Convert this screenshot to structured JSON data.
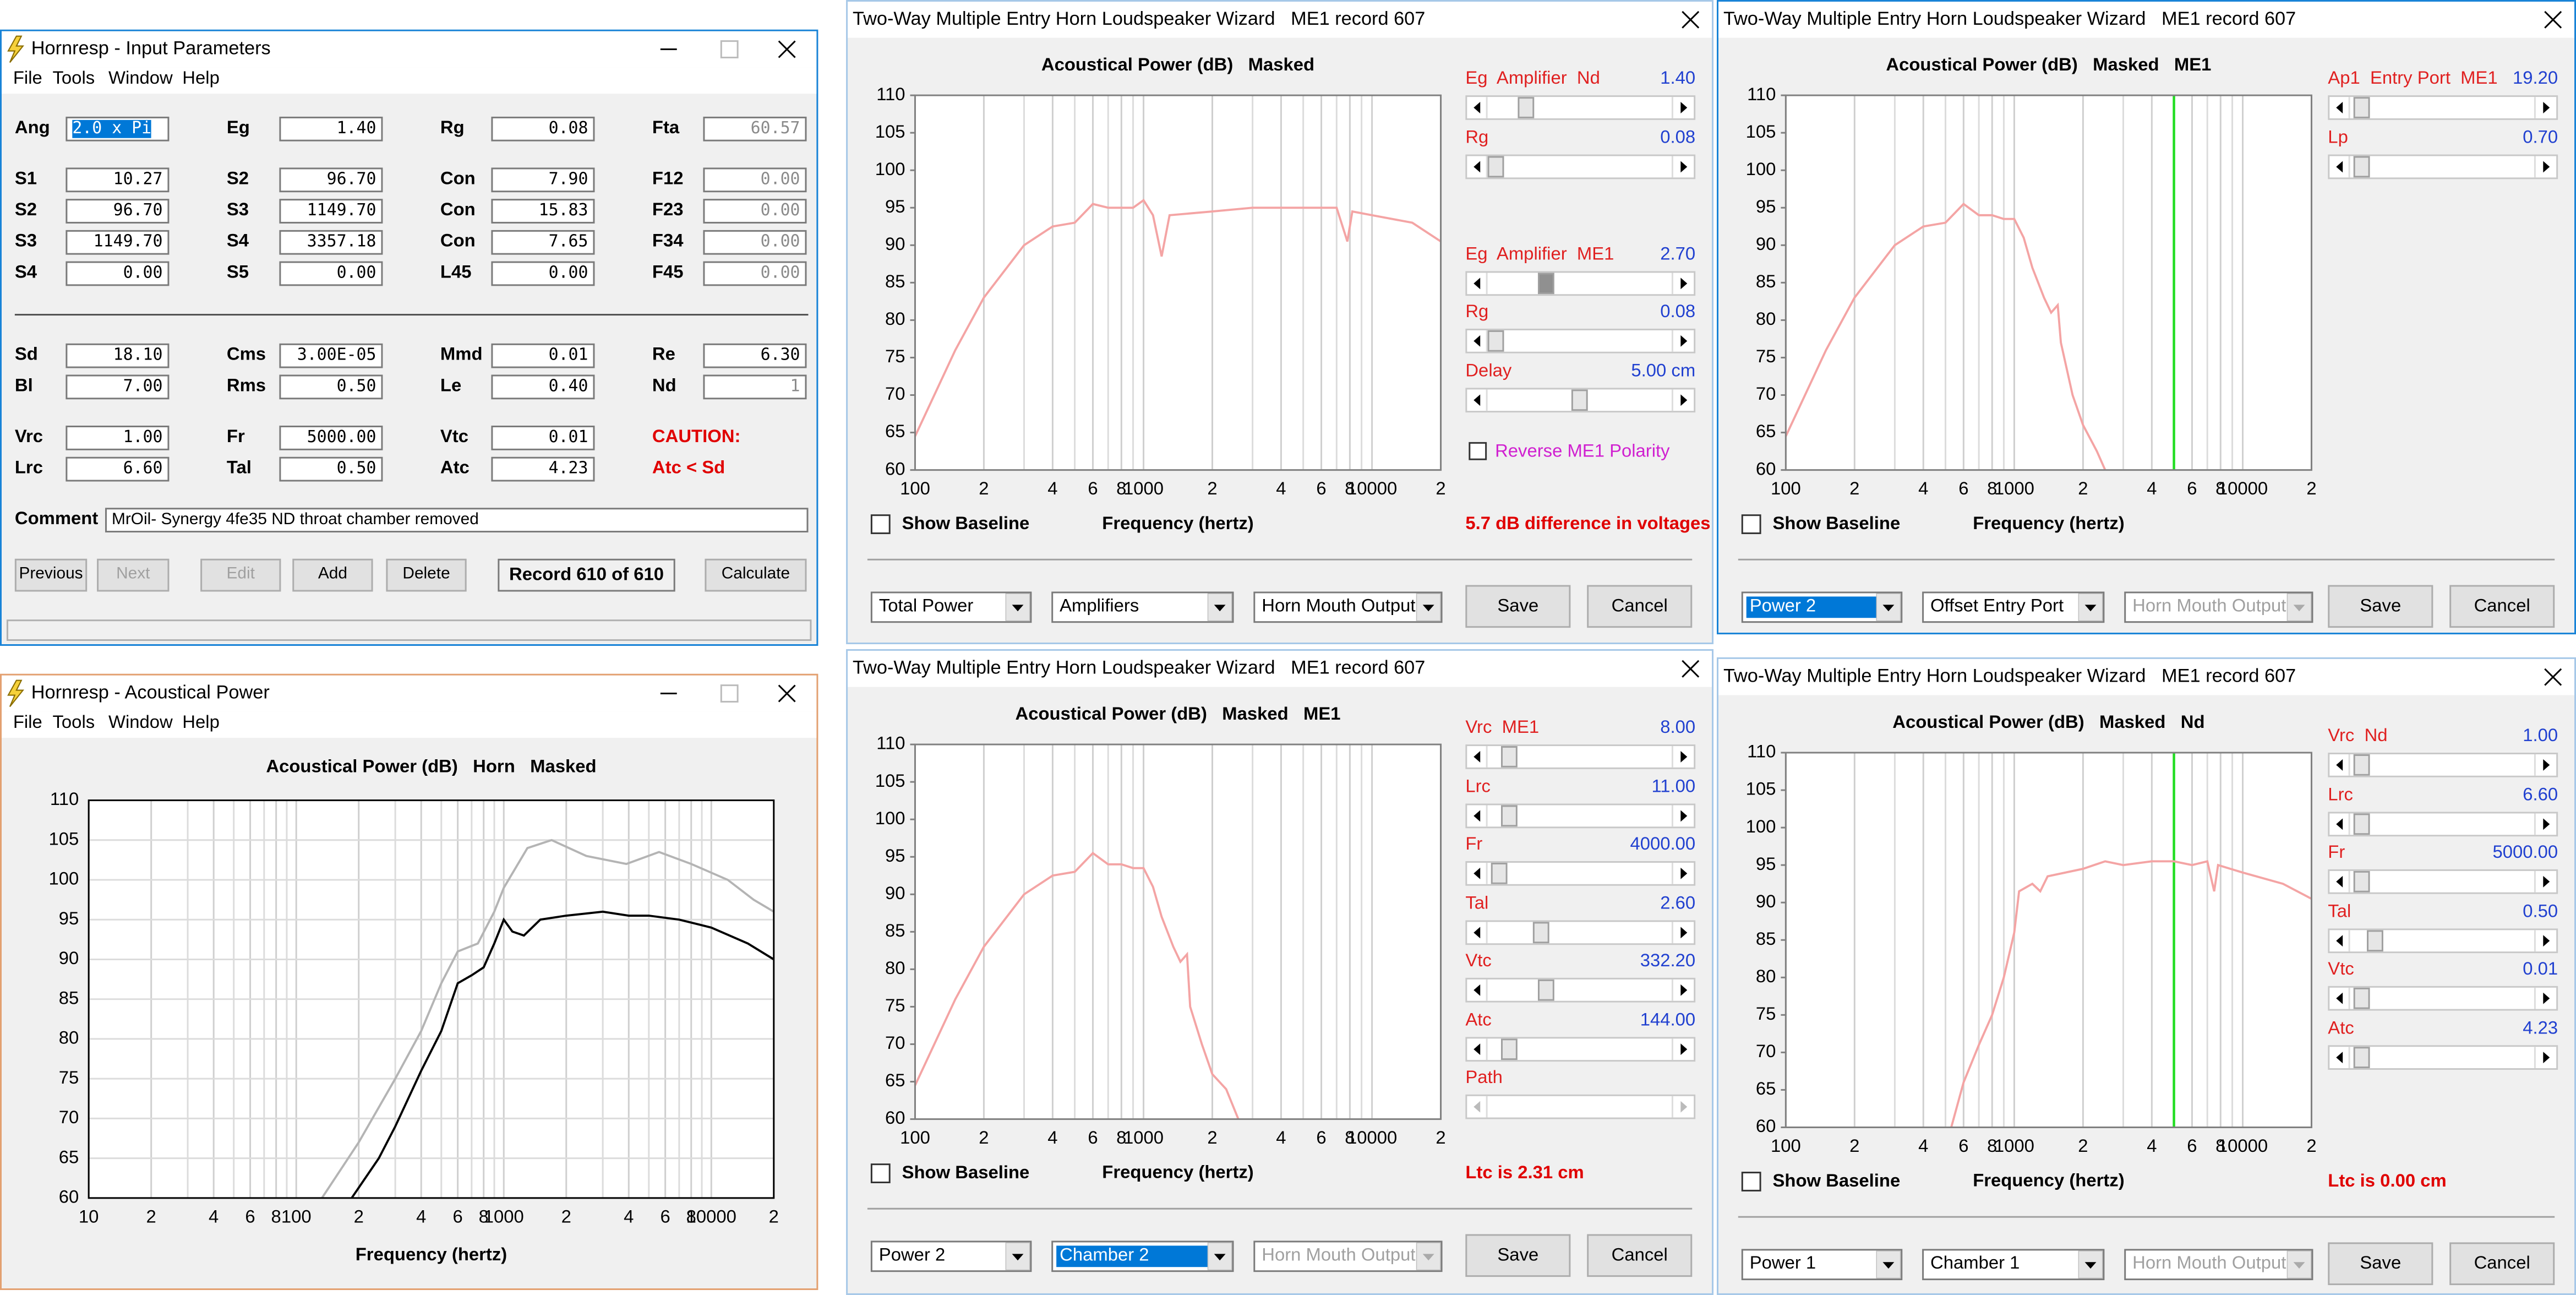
{
  "input_window": {
    "title": "Hornresp - Input Parameters",
    "menu": [
      "File",
      "Tools",
      "Window",
      "Help"
    ],
    "rows": [
      [
        [
          "Ang",
          "2.0 x Pi"
        ],
        [
          "Eg",
          "1.40"
        ],
        [
          "Rg",
          "0.08"
        ],
        [
          "Fta",
          "60.57"
        ]
      ],
      [
        [
          "S1",
          "10.27"
        ],
        [
          "S2",
          "96.70"
        ],
        [
          "Con",
          "7.90"
        ],
        [
          "F12",
          "0.00"
        ]
      ],
      [
        [
          "S2",
          "96.70"
        ],
        [
          "S3",
          "1149.70"
        ],
        [
          "Con",
          "15.83"
        ],
        [
          "F23",
          "0.00"
        ]
      ],
      [
        [
          "S3",
          "1149.70"
        ],
        [
          "S4",
          "3357.18"
        ],
        [
          "Con",
          "7.65"
        ],
        [
          "F34",
          "0.00"
        ]
      ],
      [
        [
          "S4",
          "0.00"
        ],
        [
          "S5",
          "0.00"
        ],
        [
          "L45",
          "0.00"
        ],
        [
          "F45",
          "0.00"
        ]
      ],
      [
        [
          "Sd",
          "18.10"
        ],
        [
          "Cms",
          "3.00E-05"
        ],
        [
          "Mmd",
          "0.01"
        ],
        [
          "Re",
          "6.30"
        ]
      ],
      [
        [
          "Bl",
          "7.00"
        ],
        [
          "Rms",
          "0.50"
        ],
        [
          "Le",
          "0.40"
        ],
        [
          "Nd",
          "1"
        ]
      ],
      [
        [
          "Vrc",
          "1.00"
        ],
        [
          "Fr",
          "5000.00"
        ],
        [
          "Vtc",
          "0.01"
        ]
      ],
      [
        [
          "Lrc",
          "6.60"
        ],
        [
          "Tal",
          "0.50"
        ],
        [
          "Atc",
          "4.23"
        ]
      ]
    ],
    "caution": [
      "CAUTION:",
      "Atc < Sd"
    ],
    "comment_label": "Comment",
    "comment": "MrOil- Synergy 4fe35 ND throat chamber removed",
    "buttons": [
      "Previous",
      "Next",
      "Edit",
      "Add",
      "Delete"
    ],
    "record": "Record 610 of 610",
    "calculate": "Calculate"
  },
  "power_window": {
    "title": "Hornresp - Acoustical Power",
    "menu": [
      "File",
      "Tools",
      "Window",
      "Help"
    ],
    "chart_data": {
      "type": "line",
      "title": "Acoustical Power (dB)   Horn   Masked",
      "x_label": "Frequency (hertz)",
      "xscale": "log",
      "xlim": [
        10,
        20000
      ],
      "ylim": [
        60,
        110
      ],
      "grid": "both",
      "frame_color": "#000000",
      "xticks": [
        10,
        {
          "value": 20,
          "label": "2"
        },
        {
          "value": 40,
          "label": "4"
        },
        {
          "value": 60,
          "label": "6"
        },
        {
          "value": 80,
          "label": "8"
        },
        100,
        {
          "value": 200,
          "label": "2"
        },
        {
          "value": 400,
          "label": "4"
        },
        {
          "value": 600,
          "label": "6"
        },
        {
          "value": 800,
          "label": "8"
        },
        1000,
        {
          "value": 2000,
          "label": "2"
        },
        {
          "value": 4000,
          "label": "4"
        },
        {
          "value": 6000,
          "label": "6"
        },
        {
          "value": 8000,
          "label": "8"
        },
        10000,
        {
          "value": 20000,
          "label": "2"
        }
      ],
      "minor_xticks": [
        30,
        50,
        70,
        90,
        300,
        500,
        700,
        900,
        3000,
        5000,
        7000,
        9000
      ],
      "yticks": [
        60,
        65,
        70,
        75,
        80,
        85,
        90,
        95,
        100,
        105,
        110
      ],
      "series": [
        {
          "color": "#b4b4b4",
          "x": [
            133,
            200,
            300,
            400,
            500,
            600,
            750,
            900,
            1000,
            1300,
            1700,
            2500,
            3900,
            5600,
            8000,
            12000,
            16000,
            20000
          ],
          "values": [
            60,
            67,
            75,
            81,
            87,
            91,
            92,
            96,
            99,
            104,
            105,
            103,
            102,
            103.5,
            102,
            100,
            97.5,
            96
          ]
        },
        {
          "color": "#000000",
          "x": [
            185,
            250,
            300,
            400,
            500,
            600,
            700,
            800,
            900,
            1000,
            1100,
            1250,
            1500,
            2000,
            3000,
            4000,
            5000,
            7000,
            10000,
            15000,
            20000
          ],
          "values": [
            60,
            65,
            69,
            76,
            81,
            87,
            88,
            89,
            92,
            95,
            93.5,
            93,
            95,
            95.5,
            96,
            95.5,
            95.5,
            95,
            94,
            92,
            90
          ]
        }
      ]
    }
  },
  "wizards": [
    {
      "title": "Two-Way Multiple Entry Horn Loudspeaker Wizard   ME1 record 607",
      "chart_data": {
        "type": "line",
        "title": "Acoustical Power (dB)   Masked",
        "x_label": "Frequency (hertz)",
        "xscale": "log",
        "xlim": [
          100,
          20000
        ],
        "ylim": [
          60,
          110
        ],
        "grid": "x",
        "frame_color": "#808080",
        "xticks": [
          100,
          {
            "value": 200,
            "label": "2"
          },
          {
            "value": 400,
            "label": "4"
          },
          {
            "value": 600,
            "label": "6"
          },
          {
            "value": 800,
            "label": "8"
          },
          1000,
          {
            "value": 2000,
            "label": "2"
          },
          {
            "value": 4000,
            "label": "4"
          },
          {
            "value": 6000,
            "label": "6"
          },
          {
            "value": 8000,
            "label": "8"
          },
          10000,
          {
            "value": 20000,
            "label": "2"
          }
        ],
        "minor_xticks": [
          300,
          500,
          700,
          900,
          3000,
          5000,
          7000,
          9000
        ],
        "yticks": [
          60,
          65,
          70,
          75,
          80,
          85,
          90,
          95,
          100,
          105,
          110
        ],
        "series": [
          {
            "color": "#f4a4a4",
            "x": [
              100,
              150,
              200,
              300,
              400,
              500,
              600,
              700,
              800,
              900,
              1000,
              1100,
              1200,
              1300,
              2000,
              3000,
              4000,
              5000,
              6000,
              7000,
              7800,
              8200,
              10000,
              15000,
              20000
            ],
            "values": [
              64.5,
              76,
              83,
              90,
              92.5,
              93,
              95.5,
              95,
              95,
              95,
              96,
              94,
              88.5,
              94,
              94.5,
              95,
              95,
              95,
              95,
              95,
              90.5,
              94.5,
              94,
              93,
              90.5
            ]
          }
        ]
      },
      "show_baseline": "Show Baseline",
      "sliders": [
        {
          "label": "Eg  Amplifier  Nd",
          "value": "1.40"
        },
        {
          "label": "Rg",
          "value": "0.08"
        },
        {
          "label": "Eg  Amplifier  ME1",
          "value": "2.70"
        },
        {
          "label": "Rg",
          "value": "0.08"
        },
        {
          "label": "Delay",
          "value": "5.00 cm"
        }
      ],
      "checkbox": "Reverse ME1 Polarity",
      "message": "5.7 dB difference in voltages",
      "dropdowns": [
        "Total Power",
        "Amplifiers",
        "Horn Mouth Output"
      ],
      "buttons": [
        "Save",
        "Cancel"
      ]
    },
    {
      "title": "Two-Way Multiple Entry Horn Loudspeaker Wizard   ME1 record 607",
      "chart_data": {
        "type": "line",
        "title": "Acoustical Power (dB)   Masked   ME1",
        "x_label": "Frequency (hertz)",
        "xscale": "log",
        "xlim": [
          100,
          20000
        ],
        "ylim": [
          60,
          110
        ],
        "grid": "x",
        "frame_color": "#808080",
        "xticks": [
          100,
          {
            "value": 200,
            "label": "2"
          },
          {
            "value": 400,
            "label": "4"
          },
          {
            "value": 600,
            "label": "6"
          },
          {
            "value": 800,
            "label": "8"
          },
          1000,
          {
            "value": 2000,
            "label": "2"
          },
          {
            "value": 4000,
            "label": "4"
          },
          {
            "value": 6000,
            "label": "6"
          },
          {
            "value": 8000,
            "label": "8"
          },
          10000,
          {
            "value": 20000,
            "label": "2"
          }
        ],
        "minor_xticks": [
          300,
          500,
          700,
          900,
          3000,
          5000,
          7000,
          9000
        ],
        "yticks": [
          60,
          65,
          70,
          75,
          80,
          85,
          90,
          95,
          100,
          105,
          110
        ],
        "marker": {
          "x": 5000,
          "color": "#22dd22"
        },
        "series": [
          {
            "color": "#f4a4a4",
            "x": [
              100,
              150,
              200,
              300,
              400,
              500,
              600,
              700,
              800,
              900,
              1000,
              1100,
              1200,
              1350,
              1450,
              1550,
              1600,
              1800,
              2000,
              2300,
              2500
            ],
            "values": [
              64.5,
              76,
              83,
              90,
              92.5,
              93,
              95.5,
              94,
              94,
              93.5,
              93.5,
              91,
              87,
              83,
              81,
              82,
              77,
              70,
              66,
              62.5,
              60
            ]
          }
        ]
      },
      "show_baseline": "Show Baseline",
      "sliders": [
        {
          "label": "Ap1  Entry Port  ME1",
          "value": "19.20"
        },
        {
          "label": "Lp",
          "value": "0.70"
        }
      ],
      "dropdowns": [
        "Power 2",
        "Offset Entry Port",
        "Horn Mouth Output"
      ],
      "buttons": [
        "Save",
        "Cancel"
      ]
    },
    {
      "title": "Two-Way Multiple Entry Horn Loudspeaker Wizard   ME1 record 607",
      "chart_data": {
        "type": "line",
        "title": "Acoustical Power (dB)   Masked   ME1",
        "x_label": "Frequency (hertz)",
        "xscale": "log",
        "xlim": [
          100,
          20000
        ],
        "ylim": [
          60,
          110
        ],
        "grid": "x",
        "frame_color": "#808080",
        "xticks": [
          100,
          {
            "value": 200,
            "label": "2"
          },
          {
            "value": 400,
            "label": "4"
          },
          {
            "value": 600,
            "label": "6"
          },
          {
            "value": 800,
            "label": "8"
          },
          1000,
          {
            "value": 2000,
            "label": "2"
          },
          {
            "value": 4000,
            "label": "4"
          },
          {
            "value": 6000,
            "label": "6"
          },
          {
            "value": 8000,
            "label": "8"
          },
          10000,
          {
            "value": 20000,
            "label": "2"
          }
        ],
        "minor_xticks": [
          300,
          500,
          700,
          900,
          3000,
          5000,
          7000,
          9000
        ],
        "yticks": [
          60,
          65,
          70,
          75,
          80,
          85,
          90,
          95,
          100,
          105,
          110
        ],
        "series": [
          {
            "color": "#f4a4a4",
            "x": [
              100,
              150,
              200,
              300,
              400,
              500,
              600,
              700,
              800,
              900,
              1000,
              1100,
              1200,
              1350,
              1450,
              1550,
              1600,
              1800,
              2000,
              2300,
              2600
            ],
            "values": [
              64.5,
              76,
              83,
              90,
              92.5,
              93,
              95.5,
              94,
              94,
              93.5,
              93.5,
              91,
              87,
              83,
              81,
              82,
              75,
              70,
              66,
              64,
              60
            ]
          }
        ]
      },
      "show_baseline": "Show Baseline",
      "sliders": [
        {
          "label": "Vrc  ME1",
          "value": "8.00"
        },
        {
          "label": "Lrc",
          "value": "11.00"
        },
        {
          "label": "Fr",
          "value": "4000.00"
        },
        {
          "label": "Tal",
          "value": "2.60"
        },
        {
          "label": "Vtc",
          "value": "332.20"
        },
        {
          "label": "Atc",
          "value": "144.00"
        },
        {
          "label": "Path"
        }
      ],
      "message": "Ltc is 2.31 cm",
      "dropdowns": [
        "Power 2",
        "Chamber 2",
        "Horn Mouth Output"
      ],
      "buttons": [
        "Save",
        "Cancel"
      ]
    },
    {
      "title": "Two-Way Multiple Entry Horn Loudspeaker Wizard   ME1 record 607",
      "chart_data": {
        "type": "line",
        "title": "Acoustical Power (dB)   Masked   Nd",
        "x_label": "Frequency (hertz)",
        "xscale": "log",
        "xlim": [
          100,
          20000
        ],
        "ylim": [
          60,
          110
        ],
        "grid": "x",
        "frame_color": "#808080",
        "xticks": [
          100,
          {
            "value": 200,
            "label": "2"
          },
          {
            "value": 400,
            "label": "4"
          },
          {
            "value": 600,
            "label": "6"
          },
          {
            "value": 800,
            "label": "8"
          },
          1000,
          {
            "value": 2000,
            "label": "2"
          },
          {
            "value": 4000,
            "label": "4"
          },
          {
            "value": 6000,
            "label": "6"
          },
          {
            "value": 8000,
            "label": "8"
          },
          10000,
          {
            "value": 20000,
            "label": "2"
          }
        ],
        "minor_xticks": [
          300,
          500,
          700,
          900,
          3000,
          5000,
          7000,
          9000
        ],
        "yticks": [
          60,
          65,
          70,
          75,
          80,
          85,
          90,
          95,
          100,
          105,
          110
        ],
        "marker": {
          "x": 5000,
          "color": "#22dd22"
        },
        "series": [
          {
            "color": "#f4a4a4",
            "x": [
              530,
              600,
              700,
              800,
              900,
              1000,
              1050,
              1200,
              1300,
              1400,
              2000,
              2500,
              3000,
              4000,
              5000,
              6000,
              7000,
              7500,
              7800,
              10000,
              15000,
              20000
            ],
            "values": [
              60,
              66,
              71,
              75,
              80,
              86,
              91.5,
              92.5,
              91.5,
              93.5,
              94.5,
              95.5,
              95,
              95.5,
              95.5,
              95,
              95.5,
              91.5,
              95,
              94,
              92.5,
              90.5
            ]
          }
        ]
      },
      "show_baseline": "Show Baseline",
      "sliders": [
        {
          "label": "Vrc  Nd",
          "value": "1.00"
        },
        {
          "label": "Lrc",
          "value": "6.60"
        },
        {
          "label": "Fr",
          "value": "5000.00"
        },
        {
          "label": "Tal",
          "value": "0.50"
        },
        {
          "label": "Vtc",
          "value": "0.01"
        },
        {
          "label": "Atc",
          "value": "4.23"
        }
      ],
      "message": "Ltc is 0.00 cm",
      "dropdowns": [
        "Power 1",
        "Chamber 1",
        "Horn Mouth Output"
      ],
      "buttons": [
        "Save",
        "Cancel"
      ]
    }
  ]
}
